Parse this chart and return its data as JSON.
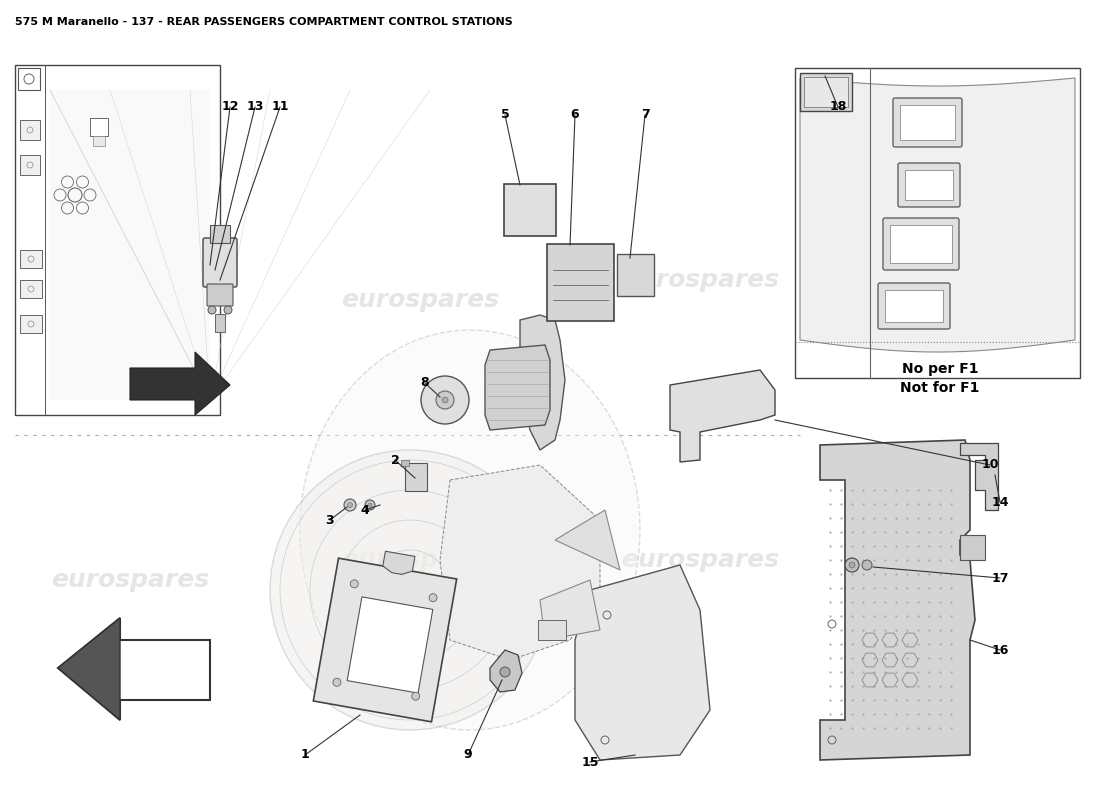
{
  "title": "575 M Maranello - 137 - REAR PASSENGERS COMPARTMENT CONTROL STATIONS",
  "title_fontsize": 8,
  "bg_color": "#ffffff",
  "watermark_text": "eurospares",
  "note_text": "No per F1\nNot for F1"
}
